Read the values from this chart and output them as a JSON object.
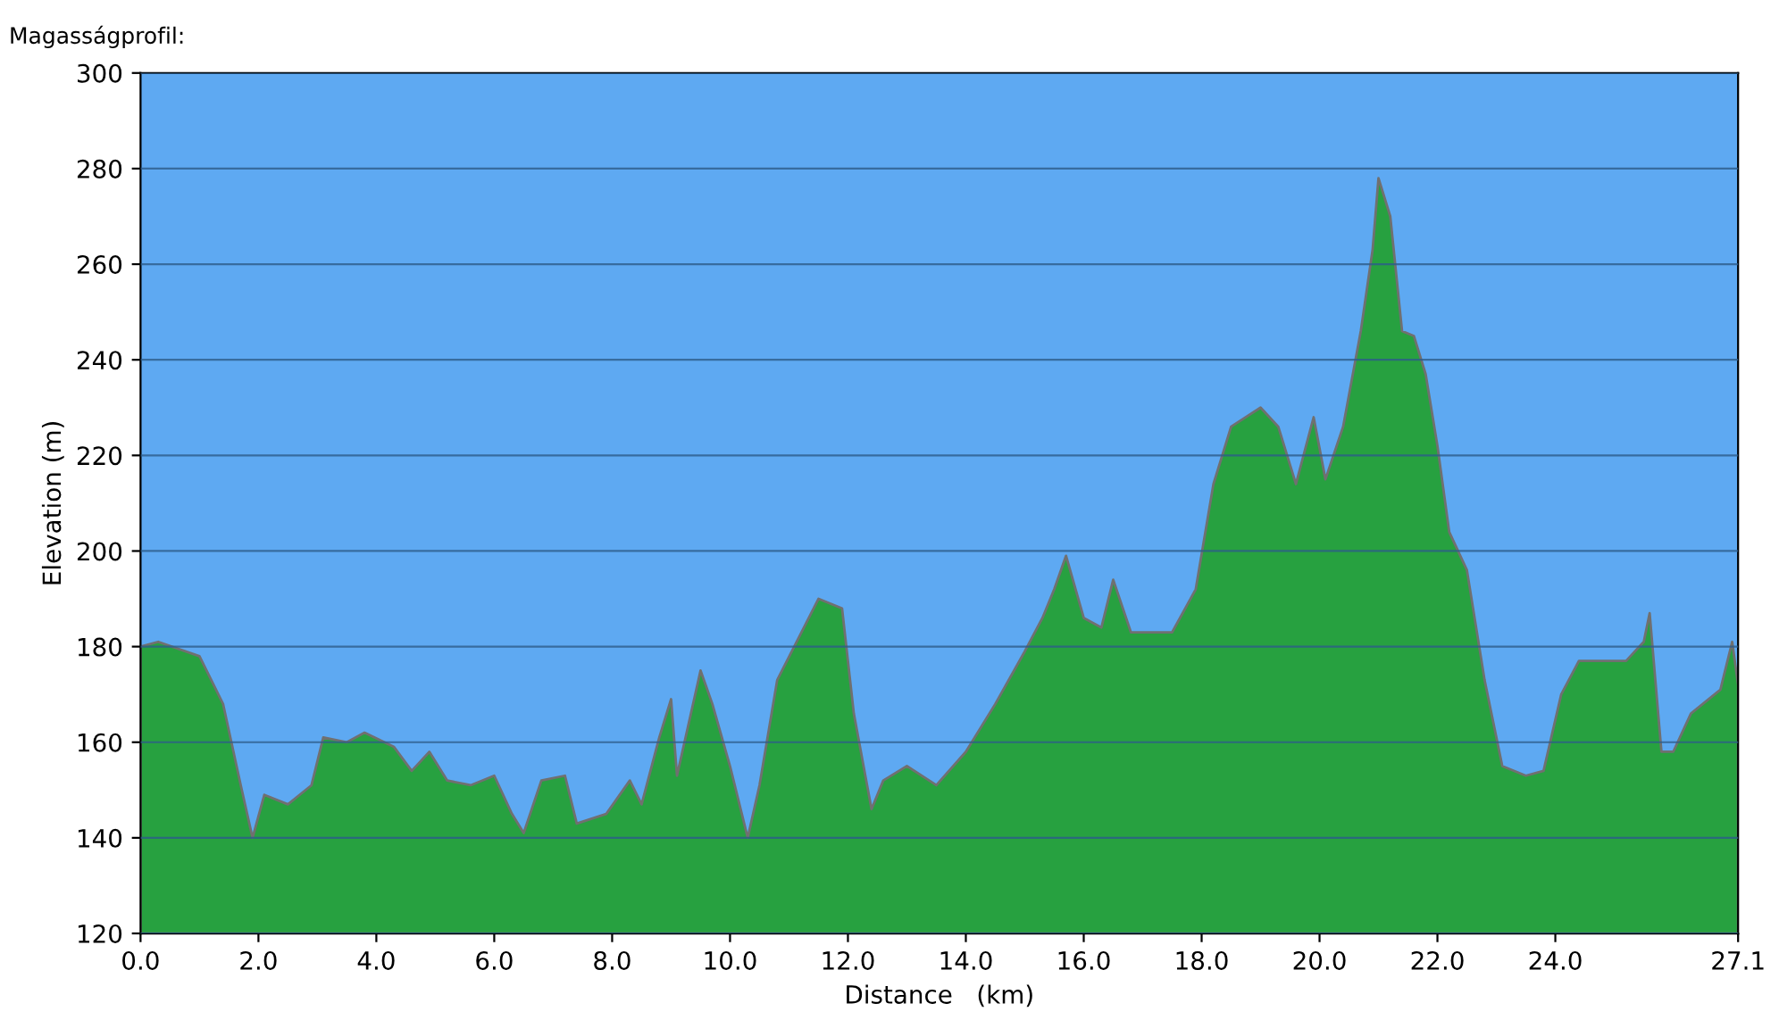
{
  "chart_data": {
    "type": "area",
    "title": "Magasságprofil:",
    "xlabel": "Distance   (km)",
    "ylabel": "Elevation (m)",
    "x": [
      0,
      0.3,
      1.0,
      1.4,
      1.7,
      1.9,
      2.1,
      2.5,
      2.9,
      3.1,
      3.5,
      3.8,
      4.3,
      4.6,
      4.9,
      5.2,
      5.6,
      6.0,
      6.3,
      6.5,
      6.8,
      7.2,
      7.4,
      7.9,
      8.3,
      8.5,
      8.8,
      9.0,
      9.1,
      9.5,
      9.7,
      10.0,
      10.3,
      10.5,
      10.8,
      11.5,
      11.9,
      12.1,
      12.4,
      12.6,
      13.0,
      13.5,
      14.0,
      14.5,
      15.0,
      15.3,
      15.5,
      15.7,
      16.0,
      16.3,
      16.5,
      16.8,
      17.5,
      17.9,
      18.2,
      18.5,
      19.0,
      19.3,
      19.6,
      19.9,
      20.1,
      20.4,
      20.7,
      20.9,
      21.0,
      21.2,
      21.4,
      21.6,
      21.8,
      22.0,
      22.2,
      22.5,
      22.8,
      23.1,
      23.5,
      23.8,
      24.1,
      24.4,
      25.2,
      25.5,
      25.6,
      25.8,
      26.0,
      26.3,
      26.8,
      27.0,
      27.1
    ],
    "series": [
      {
        "color": "#27a140",
        "values": [
          180,
          181,
          178,
          168,
          151,
          140,
          149,
          147,
          151,
          161,
          160,
          162,
          159,
          154,
          158,
          152,
          151,
          153,
          145,
          141,
          152,
          153,
          143,
          145,
          152,
          147,
          161,
          169,
          153,
          175,
          168,
          155,
          140,
          151,
          173,
          190,
          188,
          166,
          146,
          152,
          155,
          151,
          158,
          168,
          179,
          186,
          192,
          199,
          186,
          184,
          194,
          183,
          183,
          192,
          214,
          226,
          230,
          226,
          214,
          228,
          215,
          226,
          246,
          263,
          278,
          270,
          246,
          245,
          237,
          222,
          204,
          196,
          173,
          155,
          153,
          154,
          170,
          177,
          177,
          181,
          187,
          158,
          158,
          166,
          171,
          181,
          172
        ]
      }
    ],
    "xlim": [
      0,
      27.1
    ],
    "ylim": [
      120,
      300
    ],
    "xticks": [
      {
        "value": 0,
        "label": "0.0"
      },
      {
        "value": 2,
        "label": "2.0"
      },
      {
        "value": 4,
        "label": "4.0"
      },
      {
        "value": 6,
        "label": "6.0"
      },
      {
        "value": 8,
        "label": "8.0"
      },
      {
        "value": 10,
        "label": "10.0"
      },
      {
        "value": 12,
        "label": "12.0"
      },
      {
        "value": 14,
        "label": "14.0"
      },
      {
        "value": 16,
        "label": "16.0"
      },
      {
        "value": 18,
        "label": "18.0"
      },
      {
        "value": 20,
        "label": "20.0"
      },
      {
        "value": 22,
        "label": "22.0"
      },
      {
        "value": 24,
        "label": "24.0"
      },
      {
        "value": 27.1,
        "label": "27.1"
      }
    ],
    "yticks": [
      120,
      140,
      160,
      180,
      200,
      220,
      240,
      260,
      280,
      300
    ],
    "grid": "y",
    "legend": false
  }
}
